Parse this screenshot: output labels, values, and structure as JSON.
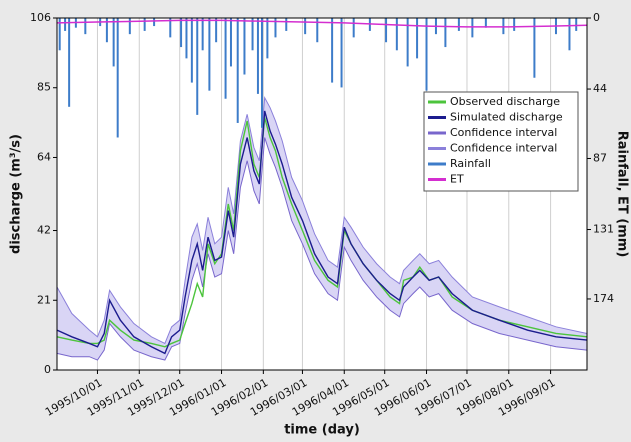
{
  "chart_data": {
    "type": "line",
    "x_label": "time (day)",
    "y_label": "discharge (m³/s)",
    "y2_label": "Rainfall, ET (mm)",
    "xlim": [
      "1995/09/01",
      "1996/09/28"
    ],
    "xticks": [
      "1995/10/01",
      "1995/11/01",
      "1995/12/01",
      "1996/01/01",
      "1996/02/01",
      "1996/03/01",
      "1996/04/01",
      "1996/05/01",
      "1996/06/01",
      "1996/07/01",
      "1996/08/01",
      "1996/09/01"
    ],
    "ylim": [
      0,
      106
    ],
    "yticks": [
      0,
      21,
      42,
      64,
      85,
      106
    ],
    "y2lim": [
      218,
      0
    ],
    "y2ticks": [
      0,
      44,
      87,
      131,
      174
    ],
    "grid": "x",
    "legend": "upper right",
    "band_color": "#d9d5f5",
    "x": [
      "1995/09/01",
      "1995/09/12",
      "1995/09/25",
      "1995/10/01",
      "1995/10/06",
      "1995/10/10",
      "1995/10/18",
      "1995/10/28",
      "1995/11/10",
      "1995/11/20",
      "1995/11/25",
      "1995/12/01",
      "1995/12/05",
      "1995/12/10",
      "1995/12/14",
      "1995/12/18",
      "1995/12/22",
      "1995/12/27",
      "1996/01/01",
      "1996/01/06",
      "1996/01/10",
      "1996/01/15",
      "1996/01/20",
      "1996/01/25",
      "1996/01/29",
      "1996/02/02",
      "1996/02/06",
      "1996/02/10",
      "1996/02/15",
      "1996/02/22",
      "1996/03/01",
      "1996/03/10",
      "1996/03/20",
      "1996/03/27",
      "1996/04/01",
      "1996/04/06",
      "1996/04/15",
      "1996/04/25",
      "1996/05/05",
      "1996/05/12",
      "1996/05/15",
      "1996/05/22",
      "1996/05/27",
      "1996/06/03",
      "1996/06/10",
      "1996/06/20",
      "1996/07/05",
      "1996/07/25",
      "1996/08/15",
      "1996/09/05",
      "1996/09/28"
    ],
    "series": [
      {
        "name": "Observed discharge",
        "color": "#4cc43c",
        "values": [
          10,
          9,
          8,
          8,
          9,
          15,
          12,
          9,
          8,
          7,
          8,
          9,
          14,
          20,
          26,
          22,
          38,
          32,
          35,
          50,
          42,
          66,
          75,
          62,
          58,
          76,
          70,
          66,
          58,
          50,
          42,
          33,
          27,
          25,
          42,
          38,
          32,
          27,
          22,
          20,
          27,
          28,
          31,
          27,
          28,
          22,
          18,
          15,
          13,
          11,
          10
        ]
      },
      {
        "name": "Simulated discharge",
        "color": "#1c1c8e",
        "values": [
          12,
          10,
          8,
          7,
          11,
          21,
          15,
          10,
          7,
          5,
          10,
          12,
          22,
          33,
          38,
          30,
          40,
          33,
          34,
          48,
          40,
          62,
          70,
          60,
          56,
          78,
          72,
          68,
          62,
          52,
          45,
          35,
          28,
          26,
          43,
          38,
          32,
          27,
          23,
          21,
          25,
          28,
          30,
          27,
          28,
          23,
          18,
          15,
          12,
          10,
          9
        ]
      },
      {
        "name": "Confidence interval",
        "color": "#7866cc",
        "values": [
          5,
          4,
          4,
          3,
          6,
          14,
          10,
          6,
          4,
          3,
          7,
          8,
          17,
          27,
          32,
          25,
          35,
          28,
          29,
          42,
          35,
          55,
          63,
          54,
          50,
          70,
          65,
          61,
          55,
          45,
          38,
          29,
          23,
          21,
          37,
          33,
          27,
          22,
          18,
          16,
          20,
          23,
          25,
          22,
          23,
          18,
          14,
          11,
          9,
          7,
          6
        ]
      },
      {
        "name": "Confidence interval",
        "color": "#8b80da",
        "values": [
          25,
          17,
          12,
          10,
          15,
          24,
          19,
          14,
          10,
          8,
          13,
          15,
          27,
          40,
          44,
          36,
          46,
          38,
          40,
          55,
          47,
          69,
          77,
          67,
          63,
          82,
          79,
          75,
          69,
          58,
          51,
          41,
          33,
          31,
          46,
          43,
          37,
          32,
          28,
          26,
          30,
          33,
          35,
          32,
          33,
          28,
          22,
          19,
          16,
          13,
          11
        ]
      },
      {
        "name": "Rainfall",
        "color": "#3d7cc9",
        "axis": "y2",
        "type": "bar",
        "x": [
          "1995/09/03",
          "1995/09/07",
          "1995/09/10",
          "1995/09/15",
          "1995/09/22",
          "1995/10/03",
          "1995/10/08",
          "1995/10/13",
          "1995/10/16",
          "1995/10/25",
          "1995/11/05",
          "1995/11/12",
          "1995/11/24",
          "1995/12/02",
          "1995/12/06",
          "1995/12/10",
          "1995/12/14",
          "1995/12/18",
          "1995/12/23",
          "1995/12/28",
          "1996/01/04",
          "1996/01/08",
          "1996/01/13",
          "1996/01/18",
          "1996/01/24",
          "1996/01/28",
          "1996/01/31",
          "1996/02/04",
          "1996/02/10",
          "1996/02/18",
          "1996/03/03",
          "1996/03/12",
          "1996/03/23",
          "1996/03/30",
          "1996/04/08",
          "1996/04/20",
          "1996/05/02",
          "1996/05/10",
          "1996/05/18",
          "1996/05/25",
          "1996/06/01",
          "1996/06/08",
          "1996/06/15",
          "1996/06/25",
          "1996/07/05",
          "1996/07/15",
          "1996/07/28",
          "1996/08/05",
          "1996/08/20",
          "1996/09/05",
          "1996/09/15",
          "1996/09/20"
        ],
        "values": [
          20,
          8,
          55,
          6,
          10,
          5,
          15,
          30,
          74,
          10,
          8,
          5,
          12,
          18,
          25,
          40,
          60,
          20,
          45,
          15,
          50,
          30,
          65,
          35,
          20,
          47,
          68,
          25,
          12,
          8,
          10,
          15,
          40,
          43,
          12,
          8,
          15,
          20,
          30,
          25,
          45,
          10,
          18,
          8,
          12,
          6,
          10,
          8,
          37,
          10,
          20,
          8
        ]
      },
      {
        "name": "ET",
        "color": "#d42ed0",
        "axis": "y2",
        "x": [
          "1995/09/01",
          "1995/10/01",
          "1995/11/01",
          "1995/12/01",
          "1996/01/01",
          "1996/02/01",
          "1996/03/01",
          "1996/04/01",
          "1996/05/01",
          "1996/06/01",
          "1996/07/01",
          "1996/08/01",
          "1996/09/01",
          "1996/09/28"
        ],
        "values": [
          3,
          2.5,
          2,
          1.5,
          1.5,
          2,
          2.5,
          3,
          4,
          5,
          5.5,
          5.5,
          5,
          4.5
        ]
      }
    ]
  }
}
